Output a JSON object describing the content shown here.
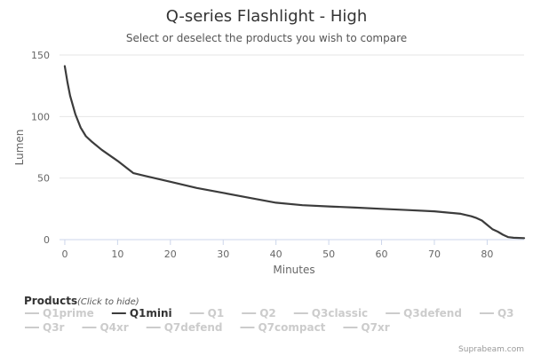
{
  "chart_data": {
    "type": "line",
    "title": "Q-series Flashlight - High",
    "subtitle": "Select or deselect the products you wish to compare",
    "xlabel": "Minutes",
    "ylabel": "Lumen",
    "xlim": [
      -1,
      87
    ],
    "ylim": [
      0,
      150
    ],
    "xticks": [
      0,
      10,
      20,
      30,
      40,
      50,
      60,
      70,
      80
    ],
    "yticks": [
      0,
      50,
      100,
      150
    ],
    "grid": "horizontal",
    "series": [
      {
        "name": "Q1mini",
        "visible": true,
        "color": "#3c3c3c",
        "x": [
          0,
          0.5,
          1,
          2,
          3,
          4,
          5,
          7,
          10,
          13,
          15,
          20,
          25,
          30,
          35,
          40,
          45,
          50,
          55,
          60,
          65,
          70,
          75,
          77,
          78,
          79,
          80,
          81,
          82,
          83,
          84,
          85,
          87
        ],
        "y": [
          141,
          128,
          117,
          102,
          91,
          84,
          80,
          73,
          64,
          54,
          52,
          47,
          42,
          38,
          34,
          30,
          28,
          27,
          26,
          25,
          24,
          23,
          21,
          19,
          17.5,
          15.5,
          12,
          8.5,
          6.5,
          4,
          2,
          1.5,
          1.2
        ]
      },
      {
        "name": "Q1prime",
        "visible": false,
        "color": "#cccccc"
      },
      {
        "name": "Q1",
        "visible": false,
        "color": "#cccccc"
      },
      {
        "name": "Q2",
        "visible": false,
        "color": "#cccccc"
      },
      {
        "name": "Q3classic",
        "visible": false,
        "color": "#cccccc"
      },
      {
        "name": "Q3defend",
        "visible": false,
        "color": "#cccccc"
      },
      {
        "name": "Q3",
        "visible": false,
        "color": "#cccccc"
      },
      {
        "name": "Q3r",
        "visible": false,
        "color": "#cccccc"
      },
      {
        "name": "Q4xr",
        "visible": false,
        "color": "#cccccc"
      },
      {
        "name": "Q7defend",
        "visible": false,
        "color": "#cccccc"
      },
      {
        "name": "Q7compact",
        "visible": false,
        "color": "#cccccc"
      },
      {
        "name": "Q7xr",
        "visible": false,
        "color": "#cccccc"
      }
    ],
    "legend": {
      "title": "Products",
      "hint": "(Click to hide)",
      "placement": "bottom-left",
      "order": [
        [
          "Q1prime",
          "Q1mini",
          "Q1",
          "Q2",
          "Q3classic",
          "Q3defend",
          "Q3"
        ],
        [
          "Q3r",
          "Q4xr",
          "Q7defend",
          "Q7compact",
          "Q7xr"
        ]
      ]
    }
  },
  "credit": "Suprabeam.com",
  "colors": {
    "axis_line": "#ccd6eb",
    "grid": "#e6e6e6",
    "hidden_series": "#cccccc",
    "active_text": "#333333"
  }
}
